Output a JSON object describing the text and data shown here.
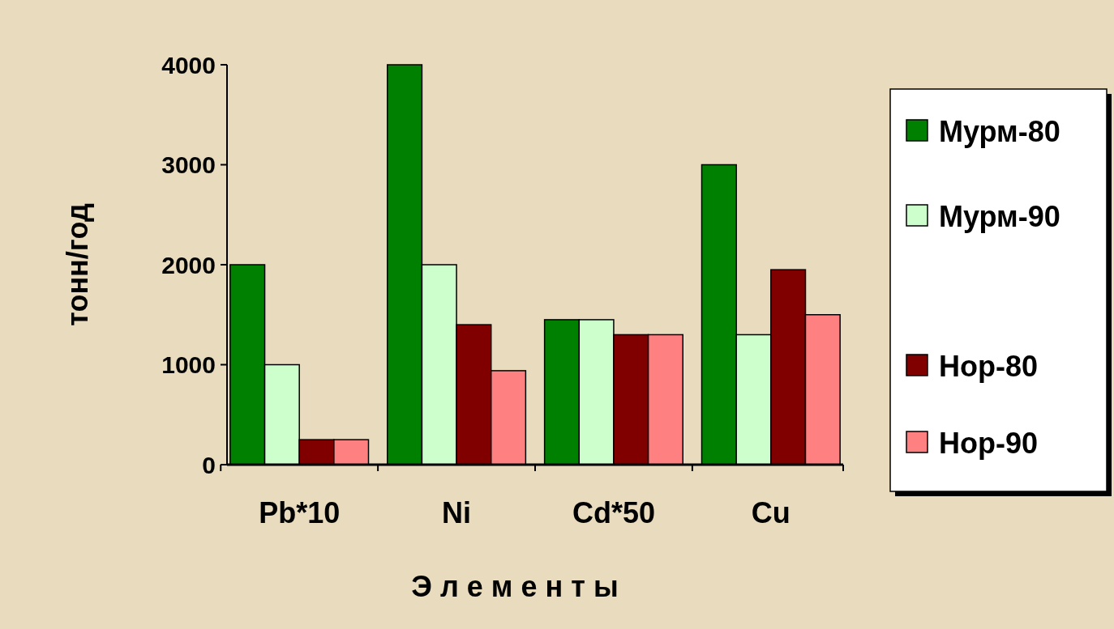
{
  "chart_data": {
    "type": "bar",
    "xlabel": "Э л е м е н т ы",
    "ylabel": "тонн/год",
    "categories": [
      "Pb*10",
      "Ni",
      "Cd*50",
      "Cu"
    ],
    "series": [
      {
        "name": "Мурм-80",
        "color": "#008000",
        "values": [
          2000,
          4000,
          1450,
          3000
        ]
      },
      {
        "name": "Мурм-90",
        "color": "#ccffcc",
        "values": [
          1000,
          2000,
          1450,
          1300
        ]
      },
      {
        "name": "Нор-80",
        "color": "#800000",
        "values": [
          250,
          1400,
          1300,
          1950
        ]
      },
      {
        "name": "Нор-90",
        "color": "#ff8080",
        "values": [
          250,
          940,
          1300,
          1500
        ]
      }
    ],
    "ylim": [
      0,
      4000
    ],
    "yticks": [
      0,
      1000,
      2000,
      3000,
      4000
    ],
    "grid": false,
    "legend": "right"
  }
}
